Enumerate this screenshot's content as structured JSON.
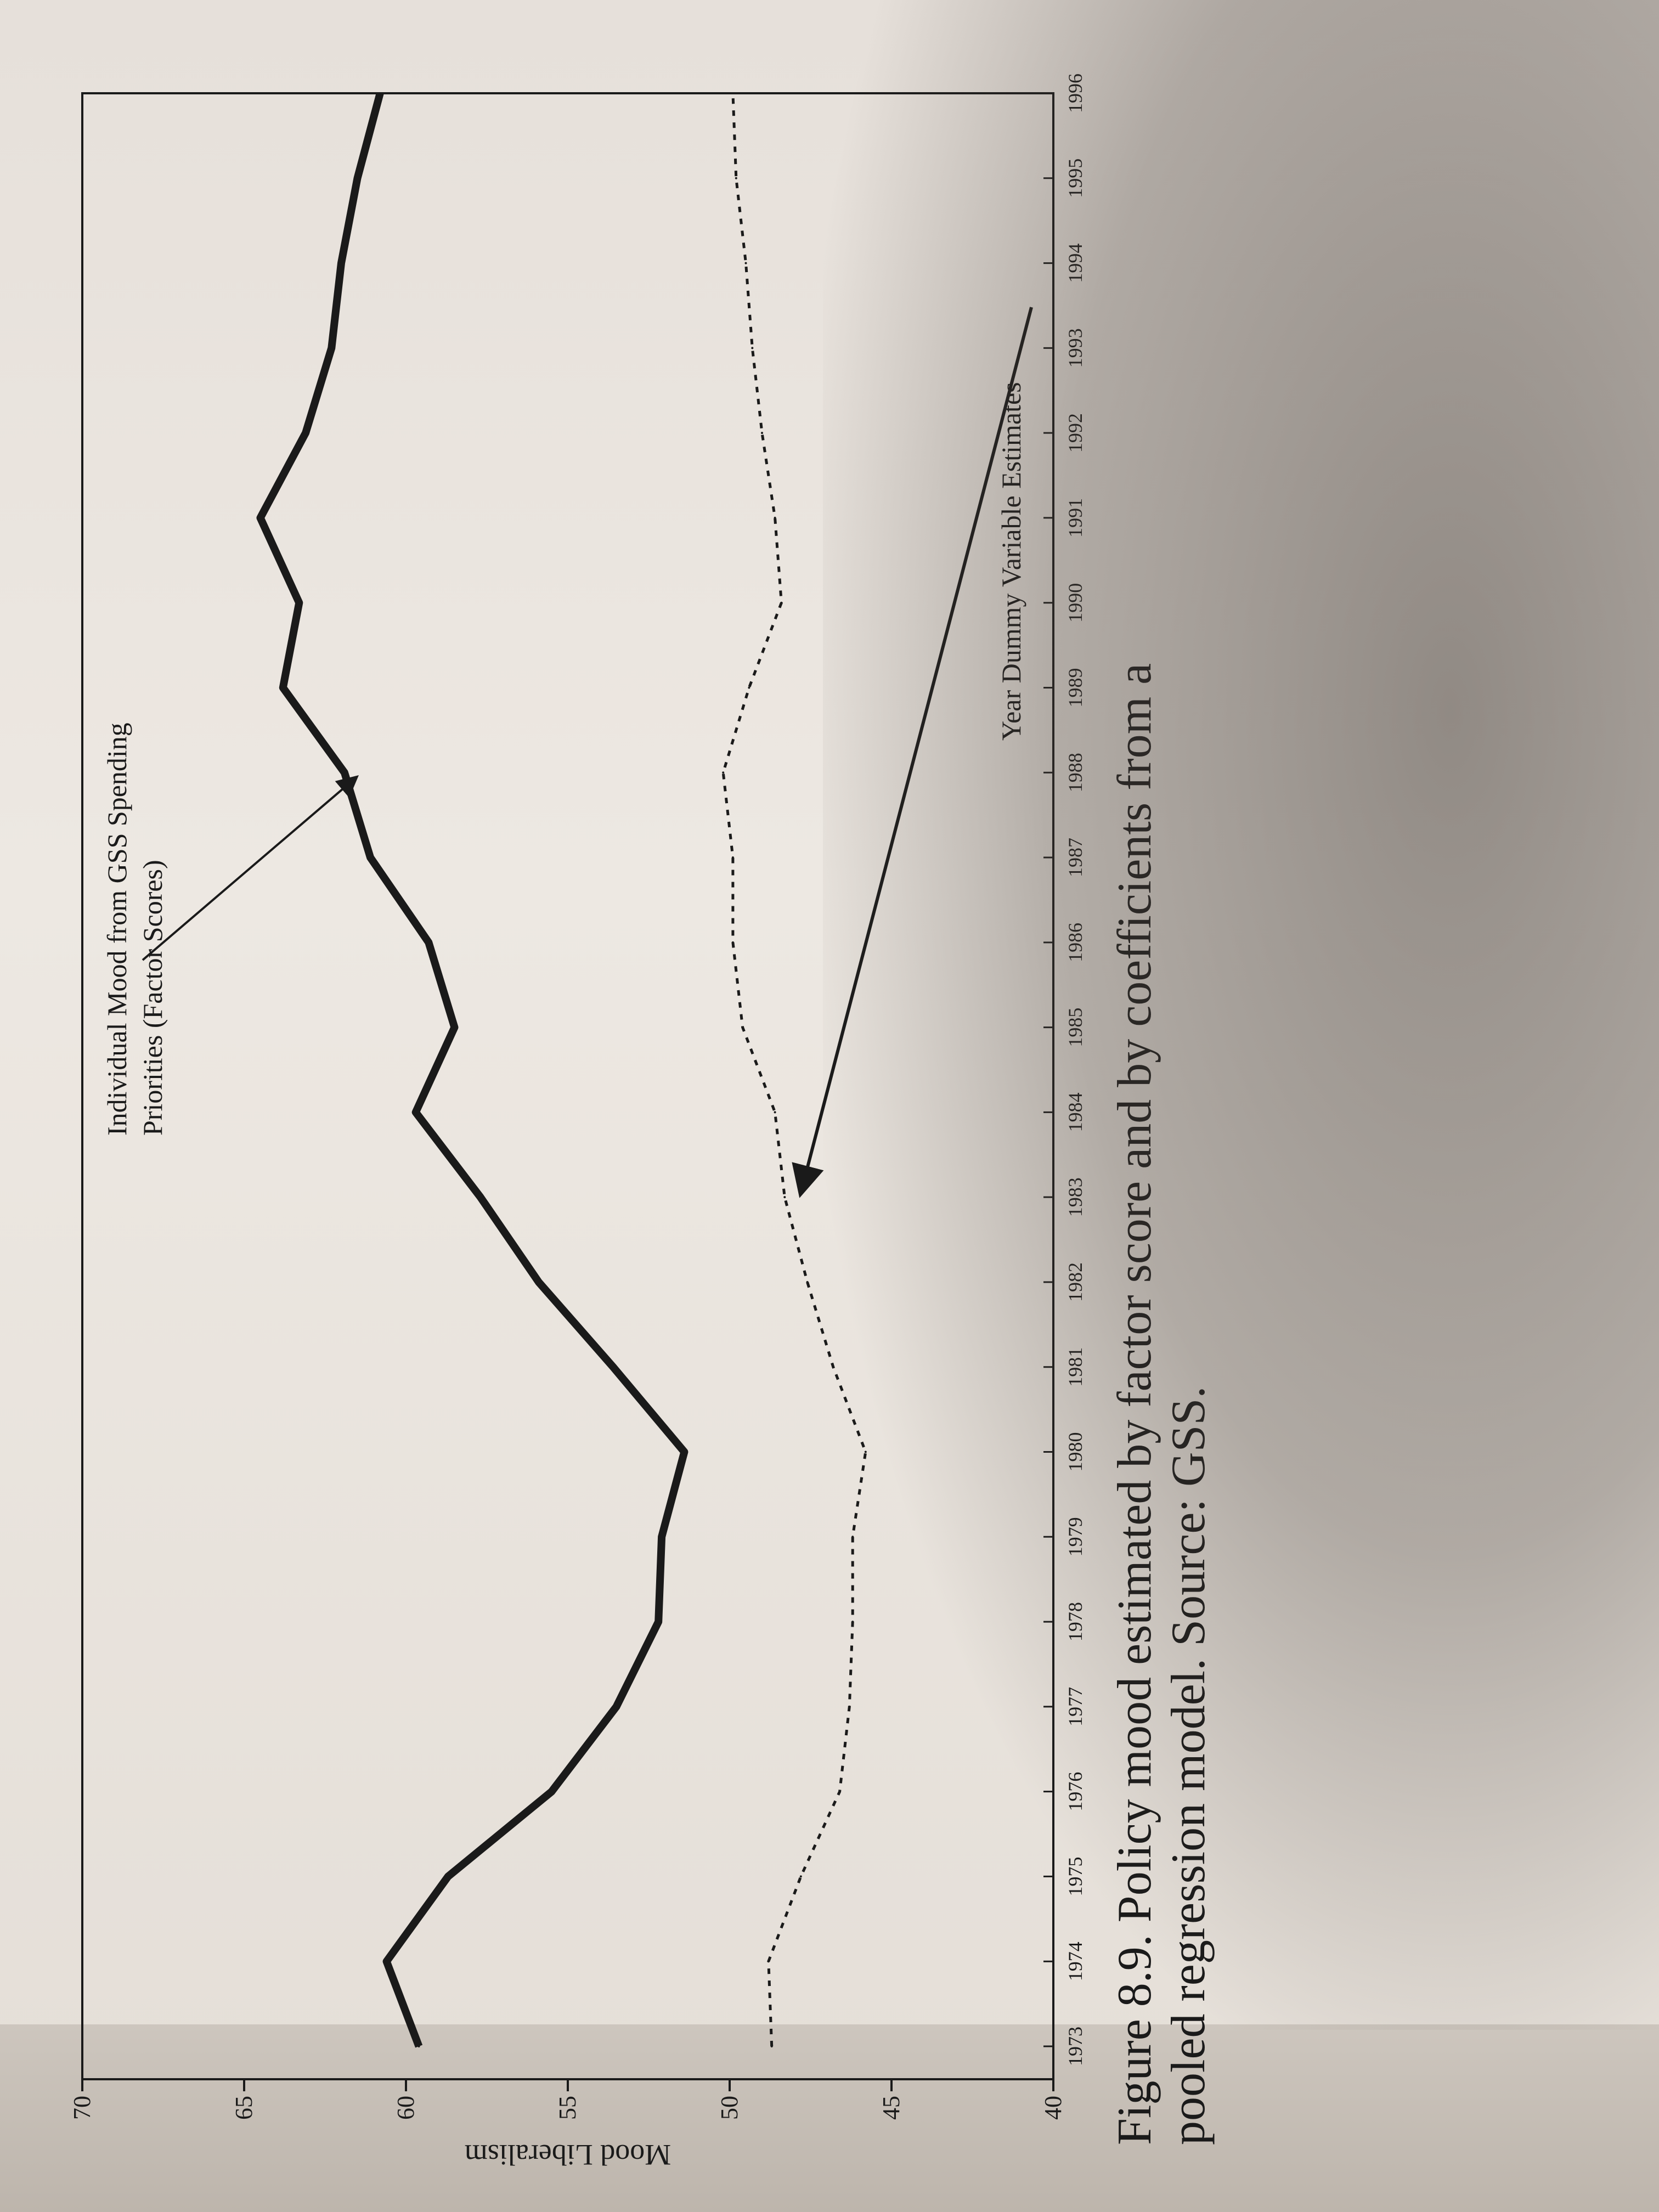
{
  "chart_data": {
    "type": "line",
    "title": "",
    "xlabel": "",
    "ylabel": "Mood Liberalism",
    "ylim": [
      40,
      70
    ],
    "yticks": [
      "40",
      "45",
      "50",
      "55",
      "60",
      "65",
      "70"
    ],
    "categories": [
      "1973",
      "1974",
      "1975",
      "1976",
      "1977",
      "1978",
      "1979",
      "1980",
      "1981",
      "1982",
      "1983",
      "1984",
      "1985",
      "1986",
      "1987",
      "1988",
      "1989",
      "1990",
      "1991",
      "1992",
      "1993",
      "1994",
      "1995",
      "1996"
    ],
    "grid": false,
    "legend": "none",
    "series": [
      {
        "name": "Individual Mood from GSS Spending Priorities (Factor Scores)",
        "style": "solid",
        "values": [
          59.6,
          60.6,
          58.7,
          55.5,
          53.5,
          52.2,
          52.1,
          51.4,
          53.6,
          55.9,
          57.7,
          59.7,
          58.5,
          59.3,
          61.1,
          61.9,
          63.8,
          63.3,
          64.5,
          63.1,
          62.3,
          62.0,
          61.5,
          60.8
        ]
      },
      {
        "name": "Year Dummy Variable Estimates",
        "style": "dotted",
        "values": [
          48.7,
          48.8,
          47.8,
          46.6,
          46.3,
          46.2,
          46.2,
          45.8,
          46.8,
          47.6,
          48.3,
          48.6,
          49.6,
          49.9,
          49.9,
          50.2,
          49.4,
          48.4,
          48.6,
          49.0,
          49.3,
          49.5,
          49.8,
          49.9
        ]
      }
    ],
    "annotations": [
      {
        "text_line1": "Individual Mood from GSS Spending",
        "text_line2": "Priorities (Factor Scores)",
        "points_to_series": 0,
        "target_year": "1988"
      },
      {
        "text": "Year Dummy Variable Estimates",
        "points_to_series": 1,
        "target_year": "1983"
      }
    ]
  },
  "caption": {
    "line1": "Figure 8.9. Policy mood estimated by factor score and by coefficients from a",
    "line2": "pooled regression model. Source: GSS."
  },
  "colors": {
    "ink": "#1a1a1a",
    "paper": "#ece7e1"
  }
}
